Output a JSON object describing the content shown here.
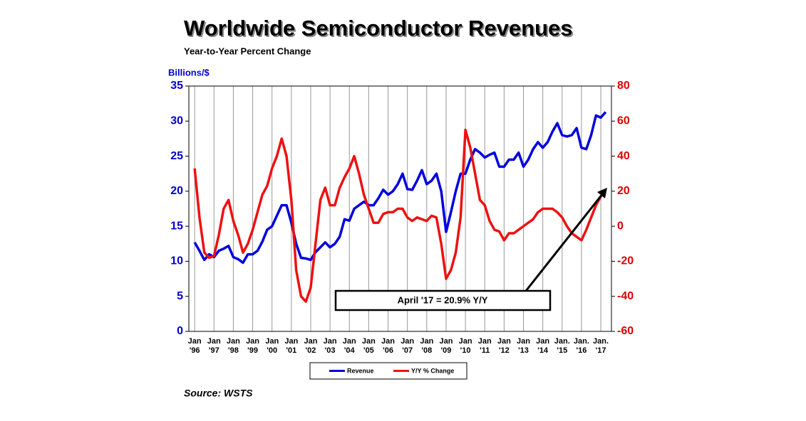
{
  "chart_data": {
    "type": "line",
    "title": "Worldwide Semiconductor Revenues",
    "subtitle": "Year-to-Year Percent Change",
    "y_label": "Billions/$",
    "source": "Source: WSTS",
    "annotation": "April '17 = 20.9% Y/Y",
    "x": [
      1996,
      1996.25,
      1996.5,
      1996.75,
      1997,
      1997.25,
      1997.5,
      1997.75,
      1998,
      1998.25,
      1998.5,
      1998.75,
      1999,
      1999.25,
      1999.5,
      1999.75,
      2000,
      2000.25,
      2000.5,
      2000.75,
      2001,
      2001.25,
      2001.5,
      2001.75,
      2002,
      2002.25,
      2002.5,
      2002.75,
      2003,
      2003.25,
      2003.5,
      2003.75,
      2004,
      2004.25,
      2004.5,
      2004.75,
      2005,
      2005.25,
      2005.5,
      2005.75,
      2006,
      2006.25,
      2006.5,
      2006.75,
      2007,
      2007.25,
      2007.5,
      2007.75,
      2008,
      2008.25,
      2008.5,
      2008.75,
      2009,
      2009.25,
      2009.5,
      2009.75,
      2010,
      2010.25,
      2010.5,
      2010.75,
      2011,
      2011.25,
      2011.5,
      2011.75,
      2012,
      2012.25,
      2012.5,
      2012.75,
      2013,
      2013.25,
      2013.5,
      2013.75,
      2014,
      2014.25,
      2014.5,
      2014.75,
      2015,
      2015.25,
      2015.5,
      2015.75,
      2016,
      2016.25,
      2016.5,
      2016.75,
      2017,
      2017.25
    ],
    "series": [
      {
        "name": "Revenue",
        "color": "#0000dd",
        "axis": "y",
        "values": [
          12.7,
          11.5,
          10.2,
          11.0,
          10.6,
          11.5,
          11.8,
          12.2,
          10.6,
          10.3,
          9.8,
          11.0,
          11.0,
          11.5,
          12.8,
          14.5,
          15.0,
          16.5,
          18.0,
          18.0,
          15.5,
          12.5,
          10.5,
          10.4,
          10.2,
          11.3,
          12.0,
          12.7,
          12.0,
          12.5,
          13.5,
          16.0,
          15.8,
          17.5,
          18.0,
          18.5,
          18.0,
          18.0,
          19.0,
          20.2,
          19.5,
          20.0,
          21.0,
          22.5,
          20.3,
          20.2,
          21.5,
          23.0,
          21.0,
          21.5,
          22.5,
          20.0,
          14.2,
          17.0,
          20.0,
          22.5,
          22.5,
          24.5,
          26.0,
          25.5,
          24.8,
          25.2,
          25.5,
          23.5,
          23.5,
          24.5,
          24.5,
          25.5,
          23.5,
          24.5,
          26.0,
          27.0,
          26.2,
          27.0,
          28.5,
          29.7,
          28.0,
          27.8,
          28.0,
          29.0,
          26.2,
          26.0,
          28.0,
          30.8,
          30.5,
          31.3
        ]
      },
      {
        "name": "Y/Y % Change",
        "color": "#ee1111",
        "axis": "y2",
        "values": [
          33,
          5,
          -15,
          -18,
          -17,
          -5,
          10,
          15,
          3,
          -5,
          -15,
          -10,
          -2,
          8,
          18,
          23,
          33,
          40,
          50,
          40,
          15,
          -25,
          -40,
          -43,
          -35,
          -10,
          15,
          22,
          12,
          12,
          22,
          28,
          33,
          40,
          30,
          18,
          10,
          2,
          2,
          7,
          8,
          8,
          10,
          10,
          5,
          3,
          5,
          4,
          3,
          6,
          5,
          -10,
          -30,
          -25,
          -15,
          5,
          55,
          45,
          30,
          15,
          12,
          3,
          -2,
          -3,
          -8,
          -4,
          -4,
          -2,
          0,
          2,
          4,
          8,
          10,
          10,
          10,
          8,
          5,
          0,
          -4,
          -6,
          -8,
          -2,
          5,
          12,
          17,
          20.9
        ]
      }
    ],
    "xlim": [
      1995.7,
      2017.55
    ],
    "xticks": [
      {
        "value": 1996,
        "label": "Jan '96"
      },
      {
        "value": 1997,
        "label": "Jan '97"
      },
      {
        "value": 1998,
        "label": "Jan '98"
      },
      {
        "value": 1999,
        "label": "Jan '99"
      },
      {
        "value": 2000,
        "label": "Jan '00"
      },
      {
        "value": 2001,
        "label": "Jan '01"
      },
      {
        "value": 2002,
        "label": "Jan '02"
      },
      {
        "value": 2003,
        "label": "Jan '03"
      },
      {
        "value": 2004,
        "label": "Jan '04"
      },
      {
        "value": 2005,
        "label": "Jan '05"
      },
      {
        "value": 2006,
        "label": "Jan '06"
      },
      {
        "value": 2007,
        "label": "Jan '07"
      },
      {
        "value": 2008,
        "label": "Jan '08"
      },
      {
        "value": 2009,
        "label": "Jan '09"
      },
      {
        "value": 2010,
        "label": "Jan '10"
      },
      {
        "value": 2011,
        "label": "Jan '11"
      },
      {
        "value": 2012,
        "label": "Jan '12"
      },
      {
        "value": 2013,
        "label": "Jan '13"
      },
      {
        "value": 2014,
        "label": "Jan '14"
      },
      {
        "value": 2015,
        "label": "Jan. '15"
      },
      {
        "value": 2016,
        "label": "Jan. '16"
      },
      {
        "value": 2017,
        "label": "Jan. '17"
      }
    ],
    "ylim": [
      0,
      35
    ],
    "yticks": [
      0,
      5,
      10,
      15,
      20,
      25,
      30,
      35
    ],
    "y2lim": [
      -60,
      80
    ],
    "y2ticks": [
      -60,
      -40,
      -20,
      0,
      20,
      40,
      60,
      80
    ],
    "grid": true
  }
}
